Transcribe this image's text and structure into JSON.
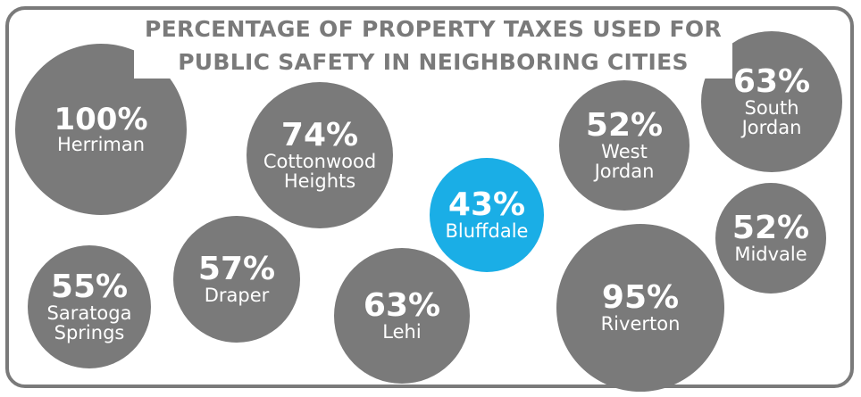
{
  "chart_data": {
    "type": "bubble",
    "title_lines": [
      "PERCENTAGE OF PROPERTY TAXES USED FOR",
      "PUBLIC SAFETY IN NEIGHBORING CITIES"
    ],
    "unit": "%",
    "categories": [
      "Herriman",
      "Cottonwood Heights",
      "Saratoga Springs",
      "Draper",
      "Lehi",
      "Bluffdale",
      "West Jordan",
      "Riverton",
      "South Jordan",
      "Midvale"
    ],
    "values": [
      100,
      74,
      55,
      57,
      63,
      43,
      52,
      95,
      63,
      52
    ],
    "series": [
      {
        "city_lines": [
          "Herriman"
        ],
        "value": 100,
        "label": "100%",
        "highlight": false
      },
      {
        "city_lines": [
          "Cottonwood",
          "Heights"
        ],
        "value": 74,
        "label": "74%",
        "highlight": false
      },
      {
        "city_lines": [
          "Saratoga",
          "Springs"
        ],
        "value": 55,
        "label": "55%",
        "highlight": false
      },
      {
        "city_lines": [
          "Draper"
        ],
        "value": 57,
        "label": "57%",
        "highlight": false
      },
      {
        "city_lines": [
          "Lehi"
        ],
        "value": 63,
        "label": "63%",
        "highlight": false
      },
      {
        "city_lines": [
          "Bluffdale"
        ],
        "value": 43,
        "label": "43%",
        "highlight": true
      },
      {
        "city_lines": [
          "West",
          "Jordan"
        ],
        "value": 52,
        "label": "52%",
        "highlight": false
      },
      {
        "city_lines": [
          "Riverton"
        ],
        "value": 95,
        "label": "95%",
        "highlight": false
      },
      {
        "city_lines": [
          "South",
          "Jordan"
        ],
        "value": 63,
        "label": "63%",
        "highlight": false
      },
      {
        "city_lines": [
          "Midvale"
        ],
        "value": 52,
        "label": "52%",
        "highlight": false
      }
    ],
    "colors": {
      "bubble": "#7a7a7a",
      "highlight": "#1aaee6",
      "border": "#7a7a7a",
      "title": "#7a7a7a",
      "text": "#ffffff"
    }
  }
}
